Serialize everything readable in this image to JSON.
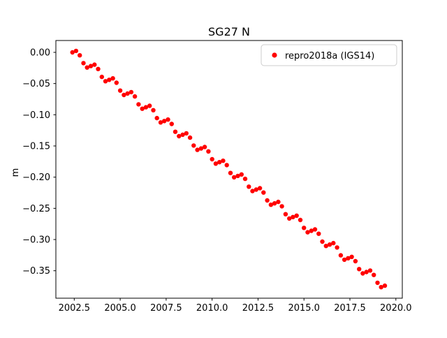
{
  "chart_data": {
    "type": "scatter",
    "title": "SG27 N",
    "xlabel": "",
    "ylabel": "m",
    "grid": false,
    "legend_position": "upper right",
    "xlim": [
      2001.5,
      2020.35
    ],
    "ylim": [
      -0.394,
      0.019
    ],
    "xticks": [
      {
        "value": 2002.5,
        "label": "2002.5"
      },
      {
        "value": 2005.0,
        "label": "2005.0"
      },
      {
        "value": 2007.5,
        "label": "2007.5"
      },
      {
        "value": 2010.0,
        "label": "2010.0"
      },
      {
        "value": 2012.5,
        "label": "2012.5"
      },
      {
        "value": 2015.0,
        "label": "2015.0"
      },
      {
        "value": 2017.5,
        "label": "2017.5"
      },
      {
        "value": 2020.0,
        "label": "2020.0"
      }
    ],
    "yticks": [
      {
        "value": 0.0,
        "label": "0.00"
      },
      {
        "value": -0.05,
        "label": "−0.05"
      },
      {
        "value": -0.1,
        "label": "−0.10"
      },
      {
        "value": -0.15,
        "label": "−0.15"
      },
      {
        "value": -0.2,
        "label": "−0.20"
      },
      {
        "value": -0.25,
        "label": "−0.25"
      },
      {
        "value": -0.3,
        "label": "−0.30"
      },
      {
        "value": -0.35,
        "label": "−0.35"
      }
    ],
    "series": [
      {
        "name": "repro2018a (IGS14)",
        "color": "#ff0000",
        "marker": "dot",
        "x": [
          2002.4,
          2002.6,
          2002.8,
          2003.0,
          2003.2,
          2003.4,
          2003.6,
          2003.8,
          2004.0,
          2004.2,
          2004.4,
          2004.6,
          2004.8,
          2005.0,
          2005.2,
          2005.4,
          2005.6,
          2005.8,
          2006.0,
          2006.2,
          2006.4,
          2006.6,
          2006.8,
          2007.0,
          2007.2,
          2007.4,
          2007.6,
          2007.8,
          2008.0,
          2008.2,
          2008.4,
          2008.6,
          2008.8,
          2009.0,
          2009.2,
          2009.4,
          2009.6,
          2009.8,
          2010.0,
          2010.2,
          2010.4,
          2010.6,
          2010.8,
          2011.0,
          2011.2,
          2011.4,
          2011.6,
          2011.8,
          2012.0,
          2012.2,
          2012.4,
          2012.6,
          2012.8,
          2013.0,
          2013.2,
          2013.4,
          2013.6,
          2013.8,
          2014.0,
          2014.2,
          2014.4,
          2014.6,
          2014.8,
          2015.0,
          2015.2,
          2015.4,
          2015.6,
          2015.8,
          2016.0,
          2016.2,
          2016.4,
          2016.6,
          2016.8,
          2017.0,
          2017.2,
          2017.4,
          2017.6,
          2017.8,
          2018.0,
          2018.2,
          2018.4,
          2018.6,
          2018.8,
          2019.0,
          2019.2,
          2019.4
        ],
        "y": [
          0.0,
          0.0023,
          -0.0047,
          -0.0173,
          -0.0243,
          -0.022,
          -0.0197,
          -0.0267,
          -0.0393,
          -0.0463,
          -0.044,
          -0.0417,
          -0.0487,
          -0.0613,
          -0.0683,
          -0.066,
          -0.0637,
          -0.0707,
          -0.0833,
          -0.0903,
          -0.088,
          -0.0857,
          -0.0927,
          -0.1053,
          -0.1123,
          -0.11,
          -0.1077,
          -0.1147,
          -0.1273,
          -0.1343,
          -0.132,
          -0.1297,
          -0.1367,
          -0.1493,
          -0.1563,
          -0.154,
          -0.1517,
          -0.1587,
          -0.1713,
          -0.1783,
          -0.176,
          -0.1737,
          -0.1807,
          -0.1933,
          -0.2003,
          -0.198,
          -0.1957,
          -0.2027,
          -0.2153,
          -0.2223,
          -0.22,
          -0.2177,
          -0.2247,
          -0.2373,
          -0.2443,
          -0.242,
          -0.2397,
          -0.2467,
          -0.2593,
          -0.2663,
          -0.264,
          -0.2617,
          -0.2687,
          -0.2813,
          -0.2883,
          -0.286,
          -0.2837,
          -0.2907,
          -0.3033,
          -0.3103,
          -0.308,
          -0.3057,
          -0.3127,
          -0.3253,
          -0.3323,
          -0.33,
          -0.3277,
          -0.3347,
          -0.3473,
          -0.3543,
          -0.352,
          -0.3497,
          -0.3567,
          -0.3693,
          -0.3763,
          -0.374
        ]
      }
    ]
  }
}
